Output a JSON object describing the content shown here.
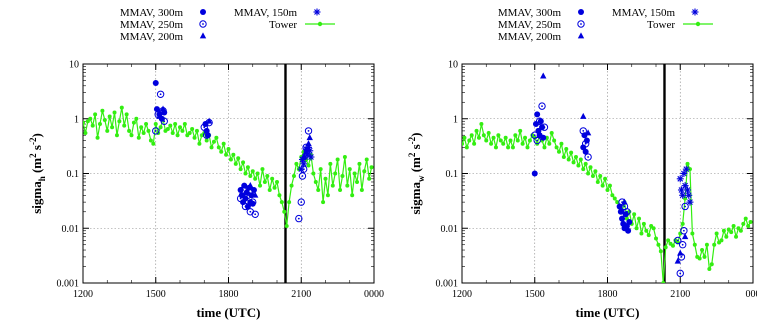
{
  "chart_data": [
    {
      "type": "scatter",
      "panel": "left",
      "xlabel": "time (UTC)",
      "ylabel": "sigma_h (m^2 s^-2)",
      "ylabel_parts": {
        "base": "sigma",
        "sub": "h",
        "units_open": " (m",
        "units_sup1": "2",
        "units_mid": " s",
        "units_sup2": "-2",
        "units_close": ")"
      },
      "x_unit_note": "hours of day, 12 = 1200 UTC, 24 = 0000 UTC",
      "xlim": [
        12,
        24
      ],
      "ylim": [
        0.001,
        10
      ],
      "yscale": "log",
      "grid": true,
      "x_tick_values": [
        12,
        15,
        18,
        21,
        24
      ],
      "x_tick_labels": [
        "1200",
        "1500",
        "1800",
        "2100",
        "0000"
      ],
      "y_tick_values": [
        0.001,
        0.01,
        0.1,
        1,
        10
      ],
      "y_tick_labels": [
        "0.001",
        "0.01",
        "0.1",
        "1",
        "10"
      ],
      "vline_x": 20.35,
      "colors": {
        "tower": "#33ee11",
        "mmav": "#0000dd"
      },
      "tower": {
        "x": [
          12.0,
          12.1,
          12.2,
          12.3,
          12.4,
          12.5,
          12.6,
          12.7,
          12.8,
          12.9,
          13.0,
          13.1,
          13.2,
          13.3,
          13.4,
          13.5,
          13.6,
          13.7,
          13.8,
          13.9,
          14.0,
          14.1,
          14.2,
          14.3,
          14.4,
          14.5,
          14.6,
          14.7,
          14.8,
          14.9,
          15.0,
          15.1,
          15.2,
          15.3,
          15.4,
          15.5,
          15.6,
          15.7,
          15.8,
          15.9,
          16.0,
          16.1,
          16.2,
          16.3,
          16.4,
          16.5,
          16.6,
          16.7,
          16.8,
          16.9,
          17.0,
          17.1,
          17.2,
          17.3,
          17.4,
          17.5,
          17.6,
          17.7,
          17.8,
          17.9,
          18.0,
          18.1,
          18.2,
          18.3,
          18.4,
          18.5,
          18.6,
          18.7,
          18.8,
          18.9,
          19.0,
          19.1,
          19.2,
          19.3,
          19.4,
          19.5,
          19.6,
          19.7,
          19.8,
          19.9,
          20.0,
          20.1,
          20.2,
          20.3,
          20.4,
          20.5,
          20.6,
          20.7,
          20.8,
          20.9,
          21.0,
          21.1,
          21.2,
          21.3,
          21.4,
          21.5,
          21.6,
          21.7,
          21.8,
          21.9,
          22.0,
          22.1,
          22.2,
          22.3,
          22.4,
          22.5,
          22.6,
          22.7,
          22.8,
          22.9,
          23.0,
          23.1,
          23.2,
          23.3,
          23.4,
          23.5,
          23.6,
          23.7,
          23.8,
          23.9
        ],
        "y": [
          0.85,
          0.55,
          0.9,
          1.0,
          0.75,
          1.2,
          0.45,
          0.8,
          1.4,
          0.95,
          0.6,
          1.1,
          0.7,
          1.3,
          0.5,
          0.9,
          1.6,
          0.75,
          1.2,
          0.6,
          0.5,
          0.85,
          1.0,
          0.45,
          0.7,
          0.55,
          0.8,
          0.6,
          0.4,
          0.35,
          0.8,
          0.55,
          0.7,
          1.0,
          0.6,
          0.65,
          0.75,
          0.55,
          0.8,
          0.5,
          0.7,
          0.6,
          0.8,
          0.5,
          0.55,
          0.65,
          0.45,
          0.6,
          0.35,
          0.5,
          0.55,
          0.4,
          0.5,
          0.3,
          0.38,
          0.45,
          0.3,
          0.25,
          0.35,
          0.22,
          0.28,
          0.18,
          0.22,
          0.15,
          0.19,
          0.12,
          0.16,
          0.1,
          0.13,
          0.09,
          0.11,
          0.08,
          0.1,
          0.06,
          0.12,
          0.07,
          0.09,
          0.05,
          0.08,
          0.055,
          0.07,
          0.04,
          0.03,
          0.02,
          0.011,
          0.03,
          0.06,
          0.09,
          0.15,
          0.12,
          0.2,
          0.25,
          0.18,
          0.14,
          0.22,
          0.1,
          0.07,
          0.05,
          0.12,
          0.03,
          0.08,
          0.04,
          0.15,
          0.06,
          0.1,
          0.18,
          0.05,
          0.09,
          0.2,
          0.06,
          0.12,
          0.04,
          0.1,
          0.07,
          0.15,
          0.05,
          0.11,
          0.18,
          0.08,
          0.13
        ]
      },
      "mmav_300m": {
        "x": [
          15.0,
          15.05,
          15.15,
          15.25,
          15.35,
          17.05,
          17.1,
          17.15,
          18.5,
          18.55,
          18.6,
          18.65,
          18.7,
          18.75,
          18.8,
          18.85,
          18.9,
          18.95,
          19.0,
          19.05
        ],
        "y": [
          4.5,
          1.5,
          1.2,
          1.0,
          1.3,
          0.8,
          0.6,
          0.5,
          0.05,
          0.04,
          0.03,
          0.06,
          0.035,
          0.045,
          0.025,
          0.055,
          0.03,
          0.04,
          0.028,
          0.05
        ]
      },
      "mmav_250m": {
        "x": [
          15.0,
          15.1,
          15.2,
          15.3,
          15.35,
          17.0,
          17.1,
          17.2,
          18.5,
          18.6,
          18.7,
          18.8,
          18.9,
          19.0,
          19.1,
          20.9,
          21.0,
          21.05,
          21.1,
          21.2,
          21.3
        ],
        "y": [
          0.6,
          1.2,
          2.8,
          1.4,
          0.9,
          0.7,
          0.5,
          0.85,
          0.035,
          0.05,
          0.025,
          0.04,
          0.02,
          0.03,
          0.018,
          0.015,
          0.03,
          0.09,
          0.12,
          0.3,
          0.6
        ]
      },
      "mmav_200m": {
        "x": [
          15.15,
          15.3,
          17.2,
          18.9,
          19.1,
          21.1,
          21.2,
          21.3,
          21.35
        ],
        "y": [
          1.1,
          1.5,
          0.9,
          0.06,
          0.04,
          0.2,
          0.25,
          0.35,
          0.45
        ]
      },
      "mmav_150m": {
        "x": [
          21.0,
          21.05,
          21.1,
          21.15,
          21.2,
          21.25,
          21.3,
          21.35,
          21.4
        ],
        "y": [
          0.12,
          0.18,
          0.15,
          0.2,
          0.28,
          0.22,
          0.3,
          0.26,
          0.2
        ]
      }
    },
    {
      "type": "scatter",
      "panel": "right",
      "xlabel": "time (UTC)",
      "ylabel": "sigma_w (m^2 s^-2)",
      "ylabel_parts": {
        "base": "sigma",
        "sub": "w",
        "units_open": " (m",
        "units_sup1": "2",
        "units_mid": " s",
        "units_sup2": "-2",
        "units_close": ")"
      },
      "x_unit_note": "hours of day, 12 = 1200 UTC, 24 = 0000 UTC",
      "xlim": [
        12,
        24
      ],
      "ylim": [
        0.001,
        10
      ],
      "yscale": "log",
      "grid": true,
      "x_tick_values": [
        12,
        15,
        18,
        21,
        24
      ],
      "x_tick_labels": [
        "1200",
        "1500",
        "1800",
        "2100",
        "000"
      ],
      "y_tick_values": [
        0.001,
        0.01,
        0.1,
        1,
        10
      ],
      "y_tick_labels": [
        "0.001",
        "0.01",
        "0.1",
        "1",
        "10"
      ],
      "vline_x": 20.35,
      "colors": {
        "tower": "#33ee11",
        "mmav": "#0000dd"
      },
      "tower": {
        "x": [
          12.0,
          12.1,
          12.2,
          12.3,
          12.4,
          12.5,
          12.6,
          12.7,
          12.8,
          12.9,
          13.0,
          13.1,
          13.2,
          13.3,
          13.4,
          13.5,
          13.6,
          13.7,
          13.8,
          13.9,
          14.0,
          14.1,
          14.2,
          14.3,
          14.4,
          14.5,
          14.6,
          14.7,
          14.8,
          14.9,
          15.0,
          15.1,
          15.2,
          15.3,
          15.4,
          15.5,
          15.6,
          15.7,
          15.8,
          15.9,
          16.0,
          16.1,
          16.2,
          16.3,
          16.4,
          16.5,
          16.6,
          16.7,
          16.8,
          16.9,
          17.0,
          17.1,
          17.2,
          17.3,
          17.4,
          17.5,
          17.6,
          17.7,
          17.8,
          17.9,
          18.0,
          18.1,
          18.2,
          18.3,
          18.4,
          18.5,
          18.6,
          18.7,
          18.8,
          18.9,
          19.0,
          19.1,
          19.2,
          19.3,
          19.4,
          19.5,
          19.6,
          19.7,
          19.8,
          19.9,
          20.0,
          20.1,
          20.2,
          20.3,
          20.4,
          20.5,
          20.6,
          20.7,
          20.8,
          20.9,
          21.0,
          21.1,
          21.2,
          21.3,
          21.4,
          21.5,
          21.6,
          21.7,
          21.8,
          21.9,
          22.0,
          22.1,
          22.2,
          22.3,
          22.4,
          22.5,
          22.6,
          22.7,
          22.8,
          22.9,
          23.0,
          23.1,
          23.2,
          23.3,
          23.4,
          23.5,
          23.6,
          23.7,
          23.8,
          23.9
        ],
        "y": [
          0.35,
          0.45,
          0.3,
          0.4,
          0.5,
          0.35,
          0.6,
          0.45,
          0.8,
          0.5,
          0.4,
          0.55,
          0.35,
          0.45,
          0.3,
          0.5,
          0.4,
          0.35,
          0.45,
          0.3,
          0.4,
          0.3,
          0.5,
          0.4,
          0.6,
          0.35,
          0.45,
          0.3,
          0.4,
          0.5,
          0.45,
          0.35,
          0.5,
          0.4,
          0.3,
          0.45,
          0.35,
          0.55,
          0.4,
          0.3,
          0.25,
          0.35,
          0.2,
          0.28,
          0.18,
          0.24,
          0.16,
          0.2,
          0.14,
          0.18,
          0.12,
          0.15,
          0.1,
          0.13,
          0.09,
          0.11,
          0.07,
          0.09,
          0.06,
          0.08,
          0.05,
          0.06,
          0.04,
          0.035,
          0.03,
          0.025,
          0.02,
          0.03,
          0.015,
          0.02,
          0.012,
          0.018,
          0.01,
          0.015,
          0.008,
          0.012,
          0.009,
          0.0075,
          0.011,
          0.01,
          0.0065,
          0.005,
          0.0038,
          0.001,
          0.0045,
          0.006,
          0.0052,
          0.0048,
          0.006,
          0.0055,
          0.008,
          0.012,
          0.035,
          0.15,
          0.12,
          0.008,
          0.005,
          0.003,
          0.0028,
          0.004,
          0.003,
          0.005,
          0.0018,
          0.0022,
          0.005,
          0.008,
          0.0055,
          0.006,
          0.009,
          0.007,
          0.0095,
          0.0085,
          0.011,
          0.007,
          0.01,
          0.009,
          0.012,
          0.015,
          0.011,
          0.013
        ]
      },
      "mmav_300m": {
        "x": [
          15.0,
          15.05,
          15.1,
          15.15,
          15.2,
          15.25,
          15.3,
          15.35,
          17.0,
          17.05,
          17.1,
          17.15,
          18.5,
          18.55,
          18.6,
          18.65,
          18.7,
          18.75,
          18.8,
          18.85,
          18.9
        ],
        "y": [
          0.1,
          0.8,
          1.2,
          0.6,
          0.5,
          0.9,
          0.7,
          0.45,
          0.3,
          0.5,
          0.25,
          0.4,
          0.025,
          0.02,
          0.015,
          0.012,
          0.01,
          0.018,
          0.011,
          0.009,
          0.013
        ]
      },
      "mmav_250m": {
        "x": [
          15.0,
          15.1,
          15.2,
          15.3,
          15.4,
          17.0,
          17.1,
          17.2,
          18.6,
          18.7,
          18.8,
          20.9,
          21.0,
          21.05,
          21.1,
          21.15,
          21.2
        ],
        "y": [
          0.5,
          0.4,
          0.9,
          1.7,
          0.7,
          0.6,
          0.35,
          0.2,
          0.03,
          0.025,
          0.02,
          0.006,
          0.0015,
          0.003,
          0.005,
          0.009,
          0.025
        ]
      },
      "mmav_200m": {
        "x": [
          15.35,
          17.0,
          17.2,
          18.7,
          20.9,
          21.0,
          21.2
        ],
        "y": [
          6.0,
          1.1,
          0.55,
          0.03,
          0.0025,
          0.0035,
          0.007
        ]
      },
      "mmav_150m": {
        "x": [
          21.0,
          21.05,
          21.1,
          21.15,
          21.2,
          21.25,
          21.3,
          21.35,
          21.4
        ],
        "y": [
          0.08,
          0.05,
          0.04,
          0.1,
          0.06,
          0.12,
          0.05,
          0.04,
          0.03
        ]
      }
    }
  ],
  "legend": {
    "entries": [
      {
        "label": "MMAV, 300m",
        "marker": "filled-circle"
      },
      {
        "label": "MMAV, 250m",
        "marker": "dotted-circle"
      },
      {
        "label": "MMAV, 200m",
        "marker": "filled-triangle"
      },
      {
        "label": "MMAV, 150m",
        "marker": "asterisk"
      },
      {
        "label": "Tower",
        "marker": "line-circle"
      }
    ]
  }
}
